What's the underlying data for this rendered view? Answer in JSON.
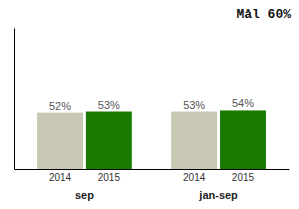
{
  "chart_data": {
    "type": "bar",
    "categories": [
      "sep",
      "jan-sep"
    ],
    "series": [
      {
        "name": "2014",
        "color": "#c8c8b4",
        "values": [
          52,
          53
        ],
        "value_labels": [
          "52%",
          "53%"
        ]
      },
      {
        "name": "2015",
        "color": "#1a7a00",
        "values": [
          53,
          54
        ],
        "value_labels": [
          "53%",
          "54%"
        ]
      }
    ],
    "ylim": [
      0,
      130
    ],
    "data_labels": true,
    "tick_labels": "x",
    "annotations": [
      "Mål 60%"
    ]
  }
}
